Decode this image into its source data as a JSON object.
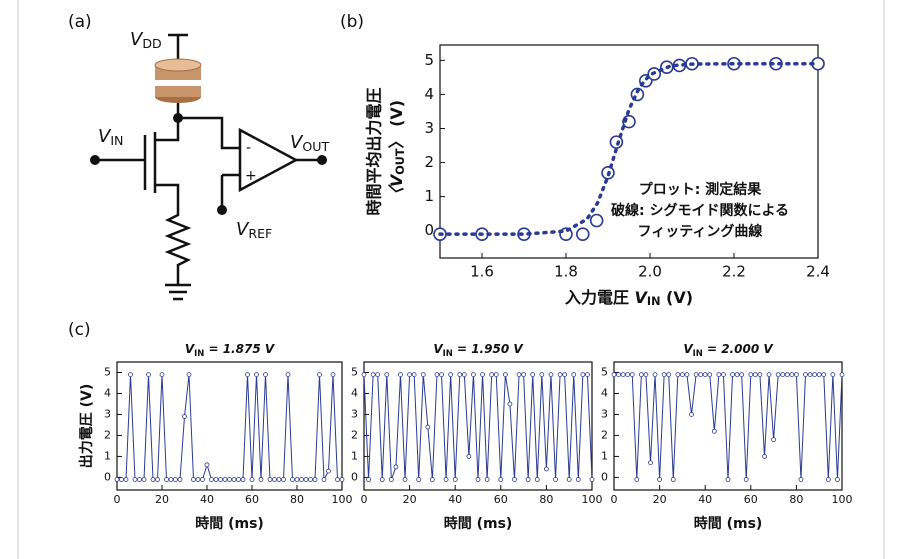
{
  "panel_labels": [
    "(a)",
    "(b)",
    "(c)"
  ],
  "diagram": {
    "vdd": [
      "V",
      "DD"
    ],
    "vin": [
      "V",
      "IN"
    ],
    "vout": [
      "V",
      "OUT"
    ],
    "vref": [
      "V",
      "REF"
    ],
    "minus": "-",
    "plus": "+"
  },
  "chart_data": [
    {
      "type": "scatter",
      "ylabel": "時間平均出力電圧",
      "ylabel2": [
        "〈V",
        "OUT",
        "〉 (V)"
      ],
      "xlabel": [
        "入力電圧 ",
        "V",
        "IN",
        " (V)"
      ],
      "xlim": [
        1.5,
        2.4
      ],
      "ylim": [
        -0.8,
        5.45
      ],
      "xticks": [
        1.6,
        1.8,
        {
          "value": 2,
          "label": "2.0"
        },
        2.2,
        2.4
      ],
      "yticks": [
        0,
        1,
        2,
        3,
        4,
        5
      ],
      "annotations": [
        "プロット: 測定結果",
        "破線: シグモイド関数による",
        "フィッティング曲線"
      ],
      "series": [
        {
          "color": "#2b3a92",
          "marker": "circle",
          "x": [
            1.5,
            1.6,
            1.7,
            1.8,
            1.84,
            1.873,
            1.9,
            1.92,
            1.95,
            1.97,
            1.99,
            2.01,
            2.04,
            2.07,
            2.1,
            2.2,
            2.3,
            2.4
          ],
          "values": [
            -0.1,
            -0.1,
            -0.1,
            -0.1,
            -0.1,
            0.3,
            1.7,
            2.6,
            3.2,
            4.0,
            4.4,
            4.6,
            4.8,
            4.85,
            4.9,
            4.9,
            4.9,
            4.9
          ]
        },
        {
          "color": "#2b3a92",
          "linestyle": "dashed",
          "x": [
            1.5,
            1.6,
            1.7,
            1.8,
            1.85,
            1.875,
            1.9,
            1.925,
            1.95,
            1.975,
            2.0,
            2.05,
            2.1,
            2.2,
            2.3,
            2.4
          ],
          "values": [
            -0.1,
            -0.1,
            -0.1,
            -0.01,
            0.34,
            0.81,
            1.6,
            2.61,
            3.56,
            4.21,
            4.58,
            4.84,
            4.89,
            4.9,
            4.9,
            4.9
          ]
        }
      ]
    },
    {
      "type": "line",
      "title": [
        "V",
        "IN",
        " = 1.875 V"
      ],
      "ylabel": "出力電圧 (V)",
      "xlabel": "時間 (ms)",
      "xlim": [
        0,
        100
      ],
      "ylim": [
        -0.6,
        5.5
      ],
      "xticks": [
        0,
        20,
        40,
        60,
        80,
        100
      ],
      "yticks": [
        0,
        1,
        2,
        3,
        4,
        5
      ],
      "color": "#2b3a92",
      "x": [
        0,
        2,
        4,
        6,
        8,
        10,
        12,
        14,
        16,
        18,
        20,
        22,
        24,
        26,
        28,
        30,
        32,
        34,
        36,
        38,
        40,
        42,
        44,
        46,
        48,
        50,
        52,
        54,
        56,
        58,
        60,
        62,
        64,
        66,
        68,
        70,
        72,
        74,
        76,
        78,
        80,
        82,
        84,
        86,
        88,
        90,
        92,
        94,
        96,
        98,
        100
      ],
      "values": [
        -0.1,
        -0.1,
        -0.1,
        4.9,
        -0.1,
        -0.1,
        -0.1,
        4.9,
        -0.1,
        -0.1,
        4.9,
        -0.1,
        -0.1,
        -0.1,
        -0.1,
        2.9,
        4.9,
        -0.1,
        -0.1,
        -0.1,
        0.6,
        -0.1,
        -0.1,
        -0.1,
        -0.1,
        -0.1,
        -0.1,
        -0.1,
        -0.1,
        4.9,
        -0.1,
        4.9,
        -0.1,
        4.9,
        -0.1,
        -0.1,
        -0.1,
        -0.1,
        4.9,
        -0.1,
        -0.1,
        -0.1,
        -0.1,
        -0.1,
        -0.1,
        4.9,
        -0.1,
        0.3,
        4.9,
        -0.1,
        -0.1
      ]
    },
    {
      "type": "line",
      "title": [
        "V",
        "IN",
        " = 1.950 V"
      ],
      "xlabel": "時間 (ms)",
      "xlim": [
        0,
        100
      ],
      "ylim": [
        -0.6,
        5.5
      ],
      "xticks": [
        0,
        20,
        40,
        60,
        80,
        100
      ],
      "yticks": [
        0,
        1,
        2,
        3,
        4,
        5
      ],
      "color": "#2b3a92",
      "x": [
        0,
        2,
        4,
        6,
        8,
        10,
        12,
        14,
        16,
        18,
        20,
        22,
        24,
        26,
        28,
        30,
        32,
        34,
        36,
        38,
        40,
        42,
        44,
        46,
        48,
        50,
        52,
        54,
        56,
        58,
        60,
        62,
        64,
        66,
        68,
        70,
        72,
        74,
        76,
        78,
        80,
        82,
        84,
        86,
        88,
        90,
        92,
        94,
        96,
        98,
        100
      ],
      "values": [
        4.9,
        -0.1,
        4.9,
        4.9,
        -0.1,
        4.9,
        -0.1,
        0.5,
        4.9,
        -0.1,
        4.9,
        4.9,
        -0.1,
        4.9,
        2.4,
        -0.1,
        4.9,
        4.9,
        -0.1,
        4.9,
        -0.1,
        4.9,
        4.9,
        1.0,
        4.9,
        -0.1,
        4.9,
        -0.1,
        4.9,
        4.9,
        -0.1,
        4.9,
        3.5,
        -0.1,
        4.9,
        4.9,
        -0.1,
        4.9,
        -0.1,
        4.9,
        0.4,
        4.9,
        -0.1,
        4.9,
        4.9,
        -0.1,
        4.9,
        -0.1,
        4.9,
        4.9,
        -0.1
      ]
    },
    {
      "type": "line",
      "title": [
        "V",
        "IN",
        " = 2.000 V"
      ],
      "xlabel": "時間 (ms)",
      "xlim": [
        0,
        100
      ],
      "ylim": [
        -0.6,
        5.5
      ],
      "xticks": [
        0,
        20,
        40,
        60,
        80,
        100
      ],
      "yticks": [
        0,
        1,
        2,
        3,
        4,
        5
      ],
      "color": "#2b3a92",
      "x": [
        0,
        2,
        4,
        6,
        8,
        10,
        12,
        14,
        16,
        18,
        20,
        22,
        24,
        26,
        28,
        30,
        32,
        34,
        36,
        38,
        40,
        42,
        44,
        46,
        48,
        50,
        52,
        54,
        56,
        58,
        60,
        62,
        64,
        66,
        68,
        70,
        72,
        74,
        76,
        78,
        80,
        82,
        84,
        86,
        88,
        90,
        92,
        94,
        96,
        98,
        100
      ],
      "values": [
        4.9,
        4.9,
        4.9,
        4.9,
        4.9,
        -0.1,
        4.9,
        4.9,
        0.7,
        4.9,
        -0.1,
        4.9,
        4.9,
        -0.1,
        4.9,
        4.9,
        4.9,
        3.0,
        4.9,
        4.9,
        4.9,
        4.9,
        2.2,
        4.9,
        4.9,
        -0.1,
        4.9,
        4.9,
        4.9,
        -0.1,
        4.9,
        4.9,
        4.9,
        1.0,
        4.9,
        1.8,
        4.9,
        4.9,
        4.9,
        4.9,
        4.9,
        -0.1,
        4.9,
        4.9,
        4.9,
        4.9,
        4.9,
        -0.1,
        4.9,
        -0.1,
        4.9
      ]
    }
  ]
}
